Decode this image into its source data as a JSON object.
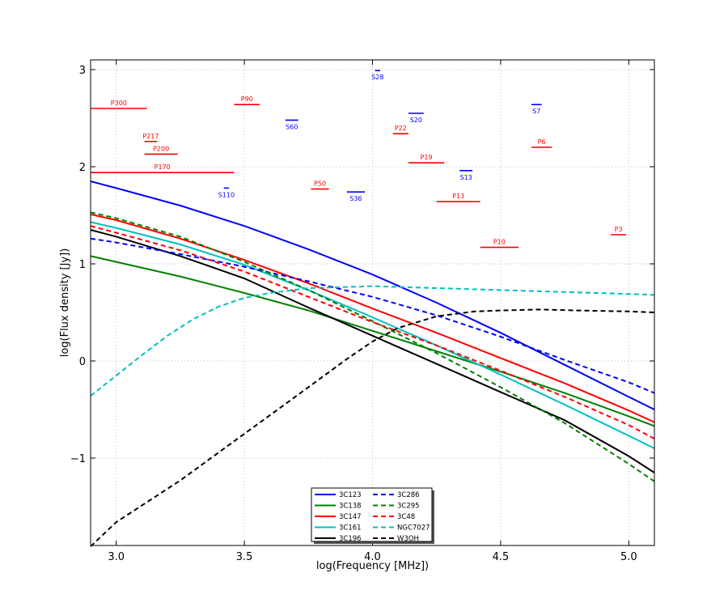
{
  "chart_data": {
    "type": "line",
    "title": "",
    "xlabel": "log(Frequency [MHz])",
    "ylabel": "log(Flux density [Jy])",
    "xlim": [
      2.9,
      5.1
    ],
    "ylim": [
      -1.9,
      3.1
    ],
    "xticks": [
      "3.0",
      "3.5",
      "4.0",
      "4.5",
      "5.0"
    ],
    "yticks": [
      "−1",
      "0",
      "1",
      "2",
      "3"
    ],
    "grid": true,
    "legend_position": "lower-center",
    "series": [
      {
        "name": "3C123",
        "color": "#0000ff",
        "dash": "solid",
        "x": [
          2.9,
          3.0,
          3.25,
          3.5,
          3.75,
          4.0,
          4.25,
          4.5,
          4.75,
          5.0,
          5.1
        ],
        "y": [
          1.85,
          1.78,
          1.6,
          1.39,
          1.15,
          0.89,
          0.6,
          0.29,
          -0.04,
          -0.37,
          -0.5
        ]
      },
      {
        "name": "3C138",
        "color": "#008000",
        "dash": "solid",
        "x": [
          2.9,
          3.0,
          3.25,
          3.5,
          3.75,
          4.0,
          4.25,
          4.5,
          4.75,
          5.0,
          5.1
        ],
        "y": [
          1.08,
          1.02,
          0.87,
          0.7,
          0.52,
          0.31,
          0.1,
          -0.11,
          -0.33,
          -0.57,
          -0.67
        ]
      },
      {
        "name": "3C147",
        "color": "#ff0000",
        "dash": "solid",
        "x": [
          2.9,
          3.0,
          3.25,
          3.5,
          3.75,
          4.0,
          4.25,
          4.5,
          4.75,
          5.0,
          5.1
        ],
        "y": [
          1.51,
          1.45,
          1.26,
          1.04,
          0.8,
          0.54,
          0.29,
          0.03,
          -0.23,
          -0.51,
          -0.63
        ]
      },
      {
        "name": "3C161",
        "color": "#00bfbf",
        "dash": "solid",
        "x": [
          2.9,
          3.0,
          3.25,
          3.5,
          3.75,
          4.0,
          4.25,
          4.5,
          4.75,
          5.0,
          5.1
        ],
        "y": [
          1.43,
          1.37,
          1.2,
          0.99,
          0.73,
          0.45,
          0.16,
          -0.14,
          -0.45,
          -0.77,
          -0.9
        ]
      },
      {
        "name": "3C196",
        "color": "#000000",
        "dash": "solid",
        "x": [
          2.9,
          3.0,
          3.25,
          3.5,
          3.75,
          4.0,
          4.25,
          4.5,
          4.75,
          5.0,
          5.1
        ],
        "y": [
          1.35,
          1.28,
          1.08,
          0.85,
          0.55,
          0.26,
          -0.03,
          -0.32,
          -0.61,
          -0.98,
          -1.15
        ]
      },
      {
        "name": "3C286",
        "color": "#0000ff",
        "dash": "dashed",
        "x": [
          2.9,
          3.0,
          3.25,
          3.5,
          3.75,
          4.0,
          4.25,
          4.5,
          4.75,
          5.0,
          5.1
        ],
        "y": [
          1.26,
          1.22,
          1.1,
          0.97,
          0.82,
          0.66,
          0.47,
          0.25,
          0.01,
          -0.22,
          -0.33
        ]
      },
      {
        "name": "3C295",
        "color": "#008000",
        "dash": "dashed",
        "x": [
          2.9,
          3.0,
          3.25,
          3.5,
          3.75,
          4.0,
          4.25,
          4.5,
          4.75,
          5.0,
          5.1
        ],
        "y": [
          1.53,
          1.47,
          1.28,
          1.02,
          0.73,
          0.41,
          0.08,
          -0.27,
          -0.64,
          -1.06,
          -1.24
        ]
      },
      {
        "name": "3C48",
        "color": "#ff0000",
        "dash": "dashed",
        "x": [
          2.9,
          3.0,
          3.25,
          3.5,
          3.75,
          4.0,
          4.25,
          4.5,
          4.75,
          5.0,
          5.1
        ],
        "y": [
          1.39,
          1.32,
          1.14,
          0.92,
          0.66,
          0.4,
          0.16,
          -0.1,
          -0.37,
          -0.66,
          -0.8
        ]
      },
      {
        "name": "NGC7027",
        "color": "#00bfbf",
        "dash": "dashed",
        "x": [
          2.9,
          3.0,
          3.1,
          3.2,
          3.3,
          3.4,
          3.5,
          3.6,
          3.75,
          4.0,
          4.25,
          4.5,
          4.75,
          5.0,
          5.1
        ],
        "y": [
          -0.36,
          -0.15,
          0.06,
          0.26,
          0.43,
          0.56,
          0.65,
          0.7,
          0.75,
          0.77,
          0.75,
          0.73,
          0.71,
          0.69,
          0.68
        ]
      },
      {
        "name": "W3OH",
        "color": "#000000",
        "dash": "dashed",
        "x": [
          2.9,
          3.0,
          3.25,
          3.5,
          3.75,
          3.9,
          4.0,
          4.1,
          4.25,
          4.4,
          4.5,
          4.65,
          4.8,
          5.0,
          5.1
        ],
        "y": [
          -1.91,
          -1.66,
          -1.23,
          -0.75,
          -0.27,
          0.02,
          0.2,
          0.34,
          0.46,
          0.51,
          0.52,
          0.53,
          0.52,
          0.51,
          0.5
        ]
      }
    ],
    "segments": [
      {
        "label": "P300",
        "color": "#ff0000",
        "x0": 2.9,
        "x1": 3.12,
        "y": 2.6
      },
      {
        "label": "P90",
        "color": "#ff0000",
        "x0": 3.46,
        "x1": 3.56,
        "y": 2.64
      },
      {
        "label": "P217",
        "color": "#ff0000",
        "x0": 3.11,
        "x1": 3.16,
        "y": 2.26
      },
      {
        "label": "P200",
        "color": "#ff0000",
        "x0": 3.11,
        "x1": 3.24,
        "y": 2.13
      },
      {
        "label": "P170",
        "color": "#ff0000",
        "x0": 2.9,
        "x1": 3.46,
        "y": 1.94
      },
      {
        "label": "P22",
        "color": "#ff0000",
        "x0": 4.08,
        "x1": 4.14,
        "y": 2.34
      },
      {
        "label": "P50",
        "color": "#ff0000",
        "x0": 3.76,
        "x1": 3.83,
        "y": 1.77
      },
      {
        "label": "P19",
        "color": "#ff0000",
        "x0": 4.14,
        "x1": 4.28,
        "y": 2.04
      },
      {
        "label": "P13",
        "color": "#ff0000",
        "x0": 4.25,
        "x1": 4.42,
        "y": 1.64
      },
      {
        "label": "P6",
        "color": "#ff0000",
        "x0": 4.62,
        "x1": 4.7,
        "y": 2.2
      },
      {
        "label": "P10",
        "color": "#ff0000",
        "x0": 4.42,
        "x1": 4.57,
        "y": 1.17
      },
      {
        "label": "P3",
        "color": "#ff0000",
        "x0": 4.93,
        "x1": 4.99,
        "y": 1.3
      },
      {
        "label": "S28",
        "color": "#0000ff",
        "x0": 4.01,
        "x1": 4.03,
        "y": 2.99
      },
      {
        "label": "S60",
        "color": "#0000ff",
        "x0": 3.66,
        "x1": 3.71,
        "y": 2.48
      },
      {
        "label": "S20",
        "color": "#0000ff",
        "x0": 4.14,
        "x1": 4.2,
        "y": 2.55
      },
      {
        "label": "S7",
        "color": "#0000ff",
        "x0": 4.62,
        "x1": 4.66,
        "y": 2.64
      },
      {
        "label": "S13",
        "color": "#0000ff",
        "x0": 4.34,
        "x1": 4.39,
        "y": 1.96
      },
      {
        "label": "S110",
        "color": "#0000ff",
        "x0": 3.42,
        "x1": 3.44,
        "y": 1.78
      },
      {
        "label": "S36",
        "color": "#0000ff",
        "x0": 3.9,
        "x1": 3.97,
        "y": 1.74
      }
    ]
  }
}
